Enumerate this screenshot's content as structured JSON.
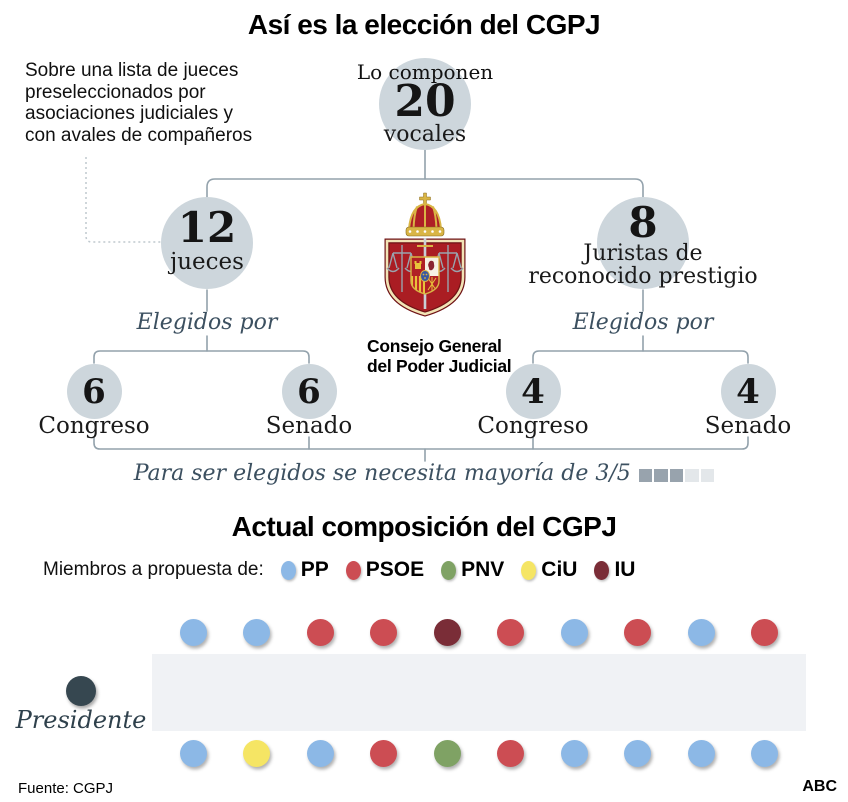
{
  "header": {
    "title": "Así es la elección del CGPJ"
  },
  "election": {
    "intro_note": "Sobre una lista de jueces\npreseleccionados por\nasociaciones judiciales y\ncon avales de compañeros",
    "total": {
      "caption": "Lo componen",
      "number": "20",
      "label": "vocales"
    },
    "branches": {
      "judges": {
        "number": "12",
        "label": "jueces",
        "elected_by": "Elegidos por",
        "chambers": [
          {
            "number": "6",
            "label": "Congreso"
          },
          {
            "number": "6",
            "label": "Senado"
          }
        ]
      },
      "jurists": {
        "number": "8",
        "label": "Juristas de\nreconocido prestigio",
        "elected_by": "Elegidos por",
        "chambers": [
          {
            "number": "4",
            "label": "Congreso"
          },
          {
            "number": "4",
            "label": "Senado"
          }
        ]
      }
    },
    "majority_note": "Para ser elegidos se necesita mayoría de 3/5",
    "majority_fraction": {
      "filled": 3,
      "total": 5
    }
  },
  "emblem": {
    "caption": "Consejo General\ndel Poder Judicial"
  },
  "composition": {
    "title": "Actual composición del CGPJ",
    "legend_label": "Miembros a propuesta de:",
    "parties": [
      {
        "name": "PP",
        "color": "#8CB8E6"
      },
      {
        "name": "PSOE",
        "color": "#CC4D53"
      },
      {
        "name": "PNV",
        "color": "#7FA264"
      },
      {
        "name": "CiU",
        "color": "#F5E564"
      },
      {
        "name": "IU",
        "color": "#7A2D37"
      }
    ],
    "president": {
      "label": "Presidente",
      "color": "#364750"
    },
    "seats_top_row": [
      "PP",
      "PP",
      "PSOE",
      "PSOE",
      "IU",
      "PSOE",
      "PP",
      "PSOE",
      "PP",
      "PSOE"
    ],
    "seats_bottom_row": [
      "PP",
      "CiU",
      "PP",
      "PSOE",
      "PNV",
      "PSOE",
      "PP",
      "PP",
      "PP",
      "PP"
    ],
    "seat_counts": {
      "PP": 10,
      "PSOE": 7,
      "PNV": 1,
      "CiU": 1,
      "IU": 1
    }
  },
  "footer": {
    "source": "Fuente: CGPJ",
    "credit": "ABC"
  },
  "colors": {
    "node_circle": "#CDD6DC",
    "connector": "#93A2AC",
    "accent_text": "#3C5060",
    "table": "#F0F2F5",
    "majority_filled": "#98A3AD",
    "majority_empty": "#E3E7EA"
  }
}
